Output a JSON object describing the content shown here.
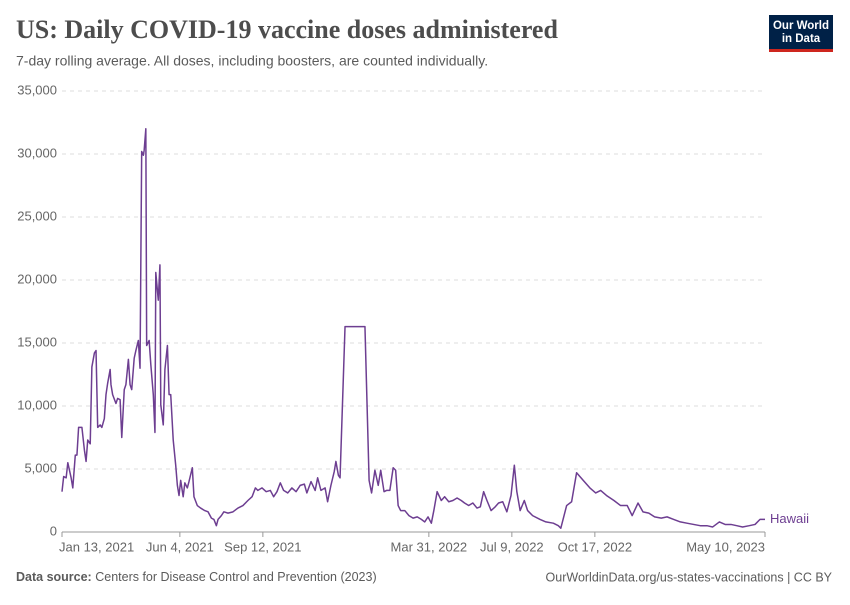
{
  "chart_data": {
    "type": "line",
    "title": "US: Daily COVID-19 vaccine doses administered",
    "subtitle": "7-day rolling average. All doses, including boosters, are counted individually.",
    "logo": [
      "Our World",
      "in Data"
    ],
    "source_label": "Data source:",
    "source": "Centers for Disease Control and Prevention (2023)",
    "footer_right": "OurWorldinData.org/us-states-vaccinations | CC BY",
    "grid": true,
    "xlim": [
      "2021-01-13",
      "2023-05-10"
    ],
    "xticks": [
      {
        "value": "2021-01-13",
        "label": "Jan 13, 2021"
      },
      {
        "value": "2021-06-04",
        "label": "Jun 4, 2021"
      },
      {
        "value": "2021-09-12",
        "label": "Sep 12, 2021"
      },
      {
        "value": "2022-03-31",
        "label": "Mar 31, 2022"
      },
      {
        "value": "2022-07-09",
        "label": "Jul 9, 2022"
      },
      {
        "value": "2022-10-17",
        "label": "Oct 17, 2022"
      },
      {
        "value": "2023-05-10",
        "label": "May 10, 2023"
      }
    ],
    "ylim": [
      0,
      35000
    ],
    "yticks": [
      0,
      {
        "value": 5000,
        "label": "5,000"
      },
      {
        "value": 10000,
        "label": "10,000"
      },
      {
        "value": 15000,
        "label": "15,000"
      },
      {
        "value": 20000,
        "label": "20,000"
      },
      {
        "value": 25000,
        "label": "25,000"
      },
      {
        "value": 30000,
        "label": "30,000"
      },
      {
        "value": 35000,
        "label": "35,000"
      }
    ],
    "x": [
      "2021-01-13",
      "2021-01-15",
      "2021-01-18",
      "2021-01-20",
      "2021-01-24",
      "2021-01-26",
      "2021-01-29",
      "2021-01-31",
      "2021-02-02",
      "2021-02-06",
      "2021-02-09",
      "2021-02-11",
      "2021-02-13",
      "2021-02-16",
      "2021-02-18",
      "2021-02-21",
      "2021-02-23",
      "2021-02-25",
      "2021-02-28",
      "2021-03-02",
      "2021-03-05",
      "2021-03-07",
      "2021-03-09",
      "2021-03-12",
      "2021-03-13",
      "2021-03-15",
      "2021-03-19",
      "2021-03-21",
      "2021-03-24",
      "2021-03-26",
      "2021-03-29",
      "2021-03-31",
      "2021-04-03",
      "2021-04-05",
      "2021-04-07",
      "2021-04-10",
      "2021-04-12",
      "2021-04-15",
      "2021-04-17",
      "2021-04-19",
      "2021-04-21",
      "2021-04-22",
      "2021-04-24",
      "2021-04-25",
      "2021-04-28",
      "2021-04-30",
      "2021-05-03",
      "2021-05-05",
      "2021-05-06",
      "2021-05-09",
      "2021-05-11",
      "2021-05-12",
      "2021-05-15",
      "2021-05-17",
      "2021-05-20",
      "2021-05-22",
      "2021-05-24",
      "2021-05-27",
      "2021-05-30",
      "2021-06-01",
      "2021-06-03",
      "2021-06-05",
      "2021-06-08",
      "2021-06-10",
      "2021-06-13",
      "2021-06-15",
      "2021-06-19",
      "2021-06-21",
      "2021-06-25",
      "2021-06-29",
      "2021-07-04",
      "2021-07-08",
      "2021-07-12",
      "2021-07-15",
      "2021-07-18",
      "2021-07-20",
      "2021-07-24",
      "2021-07-27",
      "2021-08-01",
      "2021-08-07",
      "2021-08-13",
      "2021-08-19",
      "2021-08-25",
      "2021-08-30",
      "2021-09-03",
      "2021-09-06",
      "2021-09-11",
      "2021-09-16",
      "2021-09-21",
      "2021-09-25",
      "2021-09-29",
      "2021-10-03",
      "2021-10-07",
      "2021-10-12",
      "2021-10-17",
      "2021-10-22",
      "2021-10-27",
      "2021-11-01",
      "2021-11-04",
      "2021-11-09",
      "2021-11-14",
      "2021-11-17",
      "2021-11-21",
      "2021-11-26",
      "2021-11-29",
      "2021-12-03",
      "2021-12-07",
      "2021-12-09",
      "2021-12-12",
      "2021-12-14",
      "2021-12-20",
      "2022-01-13",
      "2022-01-18",
      "2022-01-21",
      "2022-01-25",
      "2022-01-29",
      "2022-02-01",
      "2022-02-05",
      "2022-02-08",
      "2022-02-12",
      "2022-02-16",
      "2022-02-19",
      "2022-02-22",
      "2022-02-25",
      "2022-03-02",
      "2022-03-07",
      "2022-03-12",
      "2022-03-17",
      "2022-03-22",
      "2022-03-26",
      "2022-03-30",
      "2022-04-03",
      "2022-04-06",
      "2022-04-10",
      "2022-04-15",
      "2022-04-19",
      "2022-04-24",
      "2022-04-29",
      "2022-05-04",
      "2022-05-09",
      "2022-05-13",
      "2022-05-18",
      "2022-05-23",
      "2022-05-28",
      "2022-06-01",
      "2022-06-05",
      "2022-06-09",
      "2022-06-14",
      "2022-06-19",
      "2022-06-23",
      "2022-06-28",
      "2022-07-03",
      "2022-07-08",
      "2022-07-12",
      "2022-07-15",
      "2022-07-19",
      "2022-07-24",
      "2022-07-28",
      "2022-08-03",
      "2022-08-12",
      "2022-08-19",
      "2022-08-28",
      "2022-09-03",
      "2022-09-06",
      "2022-09-13",
      "2022-09-19",
      "2022-09-25",
      "2022-10-03",
      "2022-10-11",
      "2022-10-18",
      "2022-10-24",
      "2022-10-31",
      "2022-11-09",
      "2022-11-17",
      "2022-11-25",
      "2022-12-01",
      "2022-12-08",
      "2022-12-14",
      "2022-12-21",
      "2022-12-28",
      "2023-01-05",
      "2023-01-12",
      "2023-01-20",
      "2023-01-28",
      "2023-02-05",
      "2023-02-13",
      "2023-02-21",
      "2023-03-01",
      "2023-03-08",
      "2023-03-16",
      "2023-03-23",
      "2023-03-30",
      "2023-04-06",
      "2023-04-13",
      "2023-04-21",
      "2023-04-28",
      "2023-05-04",
      "2023-05-10"
    ],
    "series": [
      {
        "name": "Hawaii",
        "color": "#6d3e91",
        "values": [
          3200,
          4400,
          4300,
          5500,
          4300,
          3500,
          6100,
          6100,
          8300,
          8300,
          6500,
          5600,
          7300,
          7000,
          13100,
          14200,
          14400,
          8300,
          8500,
          8300,
          9000,
          10900,
          11800,
          12900,
          11700,
          10900,
          10200,
          10600,
          10500,
          7500,
          11300,
          11700,
          13700,
          11700,
          11300,
          13800,
          14400,
          15200,
          13000,
          30200,
          29900,
          30300,
          32000,
          14800,
          15200,
          13300,
          10900,
          7900,
          20600,
          18400,
          21200,
          10100,
          8500,
          12900,
          14800,
          10900,
          10900,
          7300,
          5300,
          3700,
          2900,
          4100,
          2800,
          3900,
          3500,
          4000,
          5100,
          2800,
          2100,
          1900,
          1700,
          1600,
          1100,
          1000,
          500,
          1000,
          1300,
          1600,
          1500,
          1600,
          1900,
          2100,
          2500,
          2800,
          3500,
          3300,
          3500,
          3200,
          3300,
          2800,
          3200,
          3900,
          3300,
          3100,
          3500,
          3200,
          3700,
          3800,
          3100,
          4000,
          3300,
          4300,
          3300,
          3500,
          2400,
          3700,
          4800,
          5600,
          4500,
          4300,
          16300,
          16300,
          4100,
          3100,
          4900,
          3700,
          4900,
          3200,
          3300,
          3300,
          5100,
          4900,
          2100,
          1700,
          1700,
          1300,
          1100,
          1200,
          1000,
          800,
          1200,
          700,
          1700,
          3200,
          2500,
          2800,
          2400,
          2500,
          2700,
          2500,
          2300,
          2100,
          2300,
          1900,
          2000,
          3200,
          2500,
          1700,
          2000,
          2300,
          2400,
          1600,
          2900,
          5300,
          3200,
          1700,
          2500,
          1700,
          1300,
          1000,
          800,
          700,
          500,
          300,
          2100,
          2400,
          4700,
          4100,
          3500,
          3100,
          3300,
          2900,
          2500,
          2100,
          2100,
          1300,
          2300,
          1600,
          1500,
          1200,
          1100,
          1200,
          1000,
          800,
          700,
          600,
          500,
          500,
          400,
          800,
          600,
          600,
          500,
          400,
          500,
          600,
          1000,
          1000
        ]
      }
    ]
  }
}
